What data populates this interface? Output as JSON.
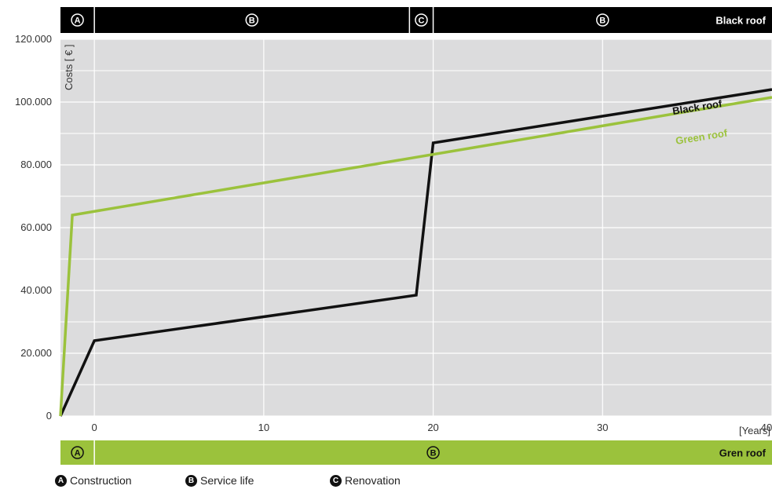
{
  "chart_data": {
    "type": "line",
    "ylabel": "Costs [ € ]",
    "xlabel": "[Years]",
    "xlim": [
      -2,
      40
    ],
    "ylim": [
      0,
      120000
    ],
    "x_ticks": [
      0,
      10,
      20,
      30,
      40
    ],
    "y_ticks": [
      0,
      20000,
      40000,
      60000,
      80000,
      100000,
      120000
    ],
    "x_tick_labels": [
      "0",
      "10",
      "20",
      "30",
      "40"
    ],
    "y_tick_labels": [
      "0",
      "20.000",
      "40.000",
      "60.000",
      "80.000",
      "100.000",
      "120.000"
    ],
    "grid": true,
    "series": [
      {
        "name": "Black roof",
        "color": "#111111",
        "points": [
          [
            -2,
            0
          ],
          [
            0,
            24000
          ],
          [
            19,
            38500
          ],
          [
            20,
            87000
          ],
          [
            40,
            104000
          ]
        ]
      },
      {
        "name": "Green roof",
        "color": "#9bc23c",
        "points": [
          [
            -2,
            0
          ],
          [
            -1.3,
            64000
          ],
          [
            40,
            101500
          ]
        ]
      }
    ],
    "top_band": {
      "color": "#000000",
      "label": "Black roof",
      "phases": [
        {
          "letter": "A",
          "x0": -2,
          "x1": 0
        },
        {
          "letter": "B",
          "x0": 0,
          "x1": 18.6
        },
        {
          "letter": "C",
          "x0": 18.6,
          "x1": 20
        },
        {
          "letter": "B",
          "x0": 20,
          "x1": 40
        }
      ]
    },
    "bottom_band": {
      "color": "#9bc23c",
      "label": "Gren roof",
      "phases": [
        {
          "letter": "A",
          "x0": -2,
          "x1": 0
        },
        {
          "letter": "B",
          "x0": 0,
          "x1": 40
        }
      ]
    }
  },
  "legend": [
    {
      "letter": "A",
      "label": "Construction"
    },
    {
      "letter": "B",
      "label": "Service life"
    },
    {
      "letter": "C",
      "label": "Renovation"
    }
  ]
}
